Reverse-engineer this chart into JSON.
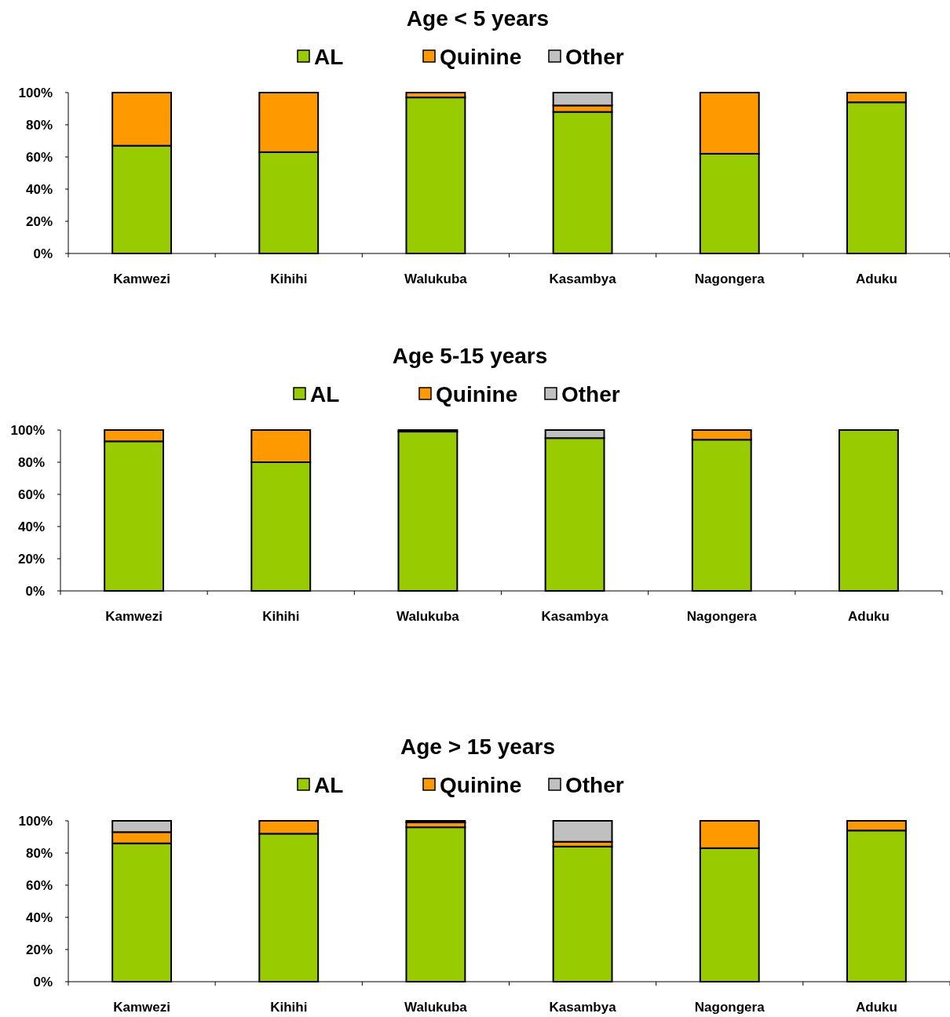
{
  "chart_data": [
    {
      "type": "bar",
      "title": "Age < 5 years",
      "stacked": true,
      "legend": "top",
      "categories": [
        "Kamwezi",
        "Kihihi",
        "Walukuba",
        "Kasambya",
        "Nagongera",
        "Aduku"
      ],
      "ylim": [
        0,
        100
      ],
      "yticks": [
        {
          "value": 0,
          "label": "0%"
        },
        {
          "value": 20,
          "label": "20%"
        },
        {
          "value": 40,
          "label": "40%"
        },
        {
          "value": 60,
          "label": "60%"
        },
        {
          "value": 80,
          "label": "80%"
        },
        {
          "value": 100,
          "label": "100%"
        }
      ],
      "grid": false,
      "series": [
        {
          "name": "AL",
          "color": "#99cc00",
          "values": [
            67,
            63,
            97,
            88,
            62,
            94
          ]
        },
        {
          "name": "Quinine",
          "color": "#ff9900",
          "values": [
            33,
            37,
            3,
            4,
            38,
            6
          ]
        },
        {
          "name": "Other",
          "color": "#c0c0c0",
          "values": [
            0,
            0,
            0,
            8,
            0,
            0
          ]
        }
      ]
    },
    {
      "type": "bar",
      "title": "Age 5-15 years",
      "stacked": true,
      "legend": "top",
      "categories": [
        "Kamwezi",
        "Kihihi",
        "Walukuba",
        "Kasambya",
        "Nagongera",
        "Aduku"
      ],
      "ylim": [
        0,
        100
      ],
      "yticks": [
        {
          "value": 0,
          "label": "0%"
        },
        {
          "value": 20,
          "label": "20%"
        },
        {
          "value": 40,
          "label": "40%"
        },
        {
          "value": 60,
          "label": "60%"
        },
        {
          "value": 80,
          "label": "80%"
        },
        {
          "value": 100,
          "label": "100%"
        }
      ],
      "grid": false,
      "series": [
        {
          "name": "AL",
          "color": "#99cc00",
          "values": [
            93,
            80,
            99,
            95,
            94,
            100
          ]
        },
        {
          "name": "Quinine",
          "color": "#ff9900",
          "values": [
            7,
            20,
            1,
            null,
            6,
            0
          ]
        },
        {
          "name": "Other",
          "color": "#c0c0c0",
          "values": [
            0,
            0,
            0,
            5,
            0,
            0
          ]
        }
      ]
    },
    {
      "type": "bar",
      "title": "Age > 15 years",
      "stacked": true,
      "legend": "top",
      "categories": [
        "Kamwezi",
        "Kihihi",
        "Walukuba",
        "Kasambya",
        "Nagongera",
        "Aduku"
      ],
      "ylim": [
        0,
        100
      ],
      "yticks": [
        {
          "value": 0,
          "label": "0%"
        },
        {
          "value": 20,
          "label": "20%"
        },
        {
          "value": 40,
          "label": "40%"
        },
        {
          "value": 60,
          "label": "60%"
        },
        {
          "value": 80,
          "label": "80%"
        },
        {
          "value": 100,
          "label": "100%"
        }
      ],
      "grid": false,
      "series": [
        {
          "name": "AL",
          "color": "#99cc00",
          "values": [
            86,
            92,
            96,
            84,
            83,
            94
          ]
        },
        {
          "name": "Quinine",
          "color": "#ff9900",
          "values": [
            7,
            8,
            3,
            3,
            17,
            6
          ]
        },
        {
          "name": "Other",
          "color": "#c0c0c0",
          "values": [
            7,
            0,
            1,
            13,
            0,
            0
          ]
        }
      ]
    }
  ]
}
